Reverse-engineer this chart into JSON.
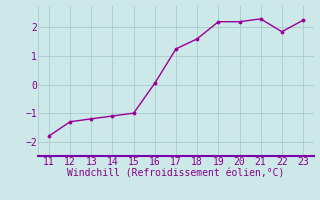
{
  "x": [
    11,
    12,
    13,
    14,
    15,
    16,
    17,
    18,
    19,
    20,
    21,
    22,
    23
  ],
  "y": [
    -1.8,
    -1.3,
    -1.2,
    -1.1,
    -1.0,
    0.05,
    1.25,
    1.6,
    2.2,
    2.2,
    2.3,
    1.85,
    2.25
  ],
  "xlim": [
    10.5,
    23.5
  ],
  "ylim": [
    -2.5,
    2.75
  ],
  "yticks": [
    -2,
    -1,
    0,
    1,
    2
  ],
  "xticks": [
    11,
    12,
    13,
    14,
    15,
    16,
    17,
    18,
    19,
    20,
    21,
    22,
    23
  ],
  "xlabel": "Windchill (Refroidissement éolien,°C)",
  "line_color": "#990099",
  "marker_color": "#990099",
  "bg_color": "#cce8e8",
  "grid_color": "#aacccc",
  "spine_color": "#7700aa",
  "text_color": "#880088",
  "xlabel_fontsize": 7.0,
  "tick_fontsize": 7.0
}
